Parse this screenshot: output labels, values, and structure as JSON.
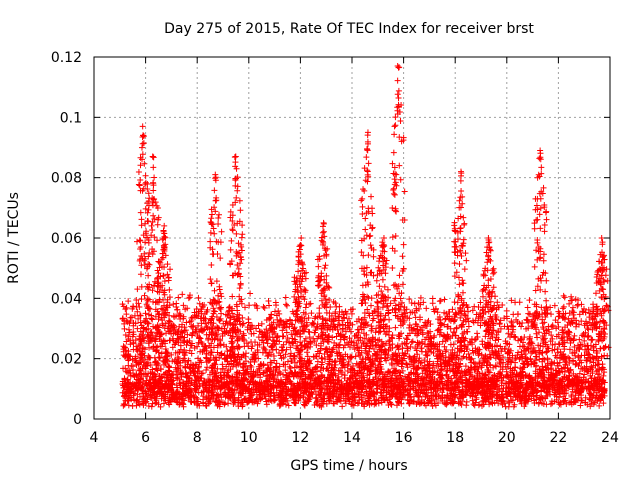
{
  "chart_data": {
    "type": "scatter",
    "title": "Day 275 of 2015, Rate Of TEC Index for receiver brst",
    "xlabel": "GPS time / hours",
    "ylabel": "ROTI / TECUs",
    "xlim": [
      4,
      24
    ],
    "ylim": [
      0,
      0.12
    ],
    "x_ticks": [
      4,
      6,
      8,
      10,
      12,
      14,
      16,
      18,
      20,
      22,
      24
    ],
    "y_ticks": [
      0,
      0.02,
      0.04,
      0.06,
      0.08,
      0.1,
      0.12
    ],
    "x_tick_labels": [
      "4",
      "6",
      "8",
      "10",
      "12",
      "14",
      "16",
      "18",
      "20",
      "22",
      "24"
    ],
    "y_tick_labels": [
      "0",
      "0.02",
      "0.04",
      "0.06",
      "0.08",
      "0.1",
      "0.12"
    ],
    "grid": true,
    "marker": "plus",
    "color": "#ff0000",
    "data_range": {
      "x_start": 5.1,
      "x_end": 23.8
    },
    "background_band": {
      "base": 0.008,
      "spread": 0.03
    },
    "spikes": [
      {
        "x": 5.9,
        "ymax": 0.097
      },
      {
        "x": 6.3,
        "ymax": 0.087
      },
      {
        "x": 6.7,
        "ymax": 0.064
      },
      {
        "x": 8.7,
        "ymax": 0.081
      },
      {
        "x": 9.5,
        "ymax": 0.087
      },
      {
        "x": 12.0,
        "ymax": 0.06
      },
      {
        "x": 12.9,
        "ymax": 0.065
      },
      {
        "x": 14.6,
        "ymax": 0.095
      },
      {
        "x": 15.2,
        "ymax": 0.06
      },
      {
        "x": 15.8,
        "ymax": 0.117
      },
      {
        "x": 18.2,
        "ymax": 0.082
      },
      {
        "x": 19.3,
        "ymax": 0.06
      },
      {
        "x": 21.3,
        "ymax": 0.089
      },
      {
        "x": 23.7,
        "ymax": 0.06
      }
    ]
  }
}
